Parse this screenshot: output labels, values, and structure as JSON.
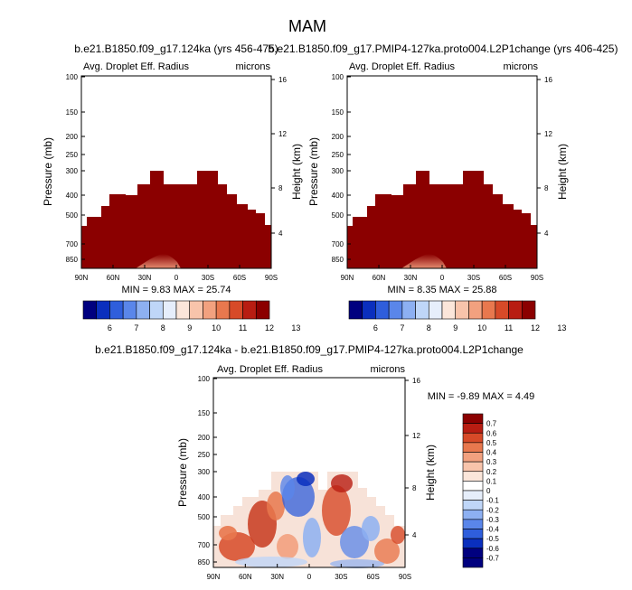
{
  "page_title": "MAM",
  "colors": {
    "plot_fill": "#8B0000",
    "highlight": "#E8784E",
    "text": "#000000"
  },
  "chart_data": [
    {
      "type": "heatmap",
      "title": "b.e21.B1850.f09_g17.124ka (yrs 456-475)",
      "subtitle_left": "Avg. Droplet Eff. Radius",
      "subtitle_right": "microns",
      "ylabel": "Pressure (mb)",
      "ylabel_right": "Height (km)",
      "x_ticks": [
        "90N",
        "60N",
        "30N",
        "0",
        "30S",
        "60S",
        "90S"
      ],
      "y_ticks": [
        "100",
        "150",
        "200",
        "250",
        "300",
        "400",
        "500",
        "700",
        "850"
      ],
      "y_right_ticks": [
        "16",
        "12",
        "8",
        "4"
      ],
      "stats": "MIN =  9.83  MAX = 25.74",
      "colorbar": {
        "labels": [
          "6",
          "7",
          "8",
          "9",
          "10",
          "11",
          "12",
          "13"
        ],
        "colors": [
          "#00007F",
          "#0A2FBE",
          "#2F5EDC",
          "#5A86EA",
          "#8DB0F2",
          "#BFD6F8",
          "#E6EEFB",
          "#FBE6DA",
          "#F8C4AB",
          "#F2A17F",
          "#E8784E",
          "#D74A28",
          "#B81D12",
          "#8B0000"
        ]
      }
    },
    {
      "type": "heatmap",
      "title": "b.e21.B1850.f09_g17.PMIP4-127ka.proto004.L2P1change (yrs 406-425)",
      "subtitle_left": "Avg. Droplet Eff. Radius",
      "subtitle_right": "microns",
      "ylabel": "Pressure (mb)",
      "ylabel_right": "Height (km)",
      "x_ticks": [
        "90N",
        "60N",
        "30N",
        "0",
        "30S",
        "60S",
        "90S"
      ],
      "y_ticks": [
        "100",
        "150",
        "200",
        "250",
        "300",
        "400",
        "500",
        "700",
        "850"
      ],
      "y_right_ticks": [
        "16",
        "12",
        "8",
        "4"
      ],
      "stats": "MIN =  8.35  MAX = 25.88",
      "colorbar": {
        "labels": [
          "6",
          "7",
          "8",
          "9",
          "10",
          "11",
          "12",
          "13"
        ],
        "colors": [
          "#00007F",
          "#0A2FBE",
          "#2F5EDC",
          "#5A86EA",
          "#8DB0F2",
          "#BFD6F8",
          "#E6EEFB",
          "#FBE6DA",
          "#F8C4AB",
          "#F2A17F",
          "#E8784E",
          "#D74A28",
          "#B81D12",
          "#8B0000"
        ]
      }
    },
    {
      "type": "heatmap",
      "title": "b.e21.B1850.f09_g17.124ka - b.e21.B1850.f09_g17.PMIP4-127ka.proto004.L2P1change",
      "subtitle_left": "Avg. Droplet Eff. Radius",
      "subtitle_right": "microns",
      "ylabel": "Pressure (mb)",
      "ylabel_right": "Height (km)",
      "x_ticks": [
        "90N",
        "60N",
        "30N",
        "0",
        "30S",
        "60S",
        "90S"
      ],
      "y_ticks": [
        "100",
        "150",
        "200",
        "250",
        "300",
        "400",
        "500",
        "700",
        "850"
      ],
      "y_right_ticks": [
        "16",
        "12",
        "8",
        "4"
      ],
      "stats": "MIN = -9.89  MAX =  4.49",
      "colorbar": {
        "labels": [
          "0.7",
          "0.6",
          "0.5",
          "0.4",
          "0.3",
          "0.2",
          "0.1",
          "0",
          "-0.1",
          "-0.2",
          "-0.3",
          "-0.4",
          "-0.5",
          "-0.6",
          "-0.7"
        ],
        "colors": [
          "#8B0000",
          "#B81D12",
          "#D74A28",
          "#E8784E",
          "#F2A17F",
          "#F8C4AB",
          "#FBE6DA",
          "#FFFFFF",
          "#E6EEFB",
          "#BFD6F8",
          "#8DB0F2",
          "#5A86EA",
          "#2F5EDC",
          "#0A2FBE",
          "#00007F",
          "#00007F"
        ]
      }
    }
  ]
}
